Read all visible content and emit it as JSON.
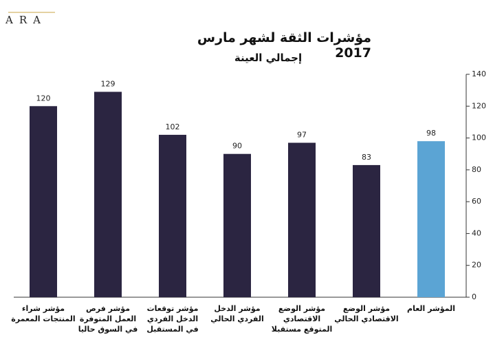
{
  "logo": "ARA",
  "chart_data": {
    "type": "bar",
    "title": "مؤشرات الثقة لشهر مارس   2017",
    "subtitle": "إجمالي العينة",
    "categories": [
      "مؤشر شراء المنتجات المعمرة",
      "مؤشر فرص العمل المتوفرة في السوق حاليا",
      "مؤشر توقعات الدخل الفردي في المستقبل",
      "مؤشر الدخل الفردي الحالي",
      "مؤشر الوضع الاقتصادي المتوقع مستقبلا",
      "مؤشر الوضع الاقتصادي الحالي",
      "المؤشر العام"
    ],
    "values": [
      120,
      129,
      102,
      90,
      97,
      83,
      98
    ],
    "colors": [
      "#2b2541",
      "#2b2541",
      "#2b2541",
      "#2b2541",
      "#2b2541",
      "#2b2541",
      "#5ba4d4"
    ],
    "ylim": [
      0,
      140
    ],
    "yticks": [
      0,
      20,
      40,
      60,
      80,
      100,
      120,
      140
    ],
    "y_axis_side": "right",
    "grid": false
  }
}
